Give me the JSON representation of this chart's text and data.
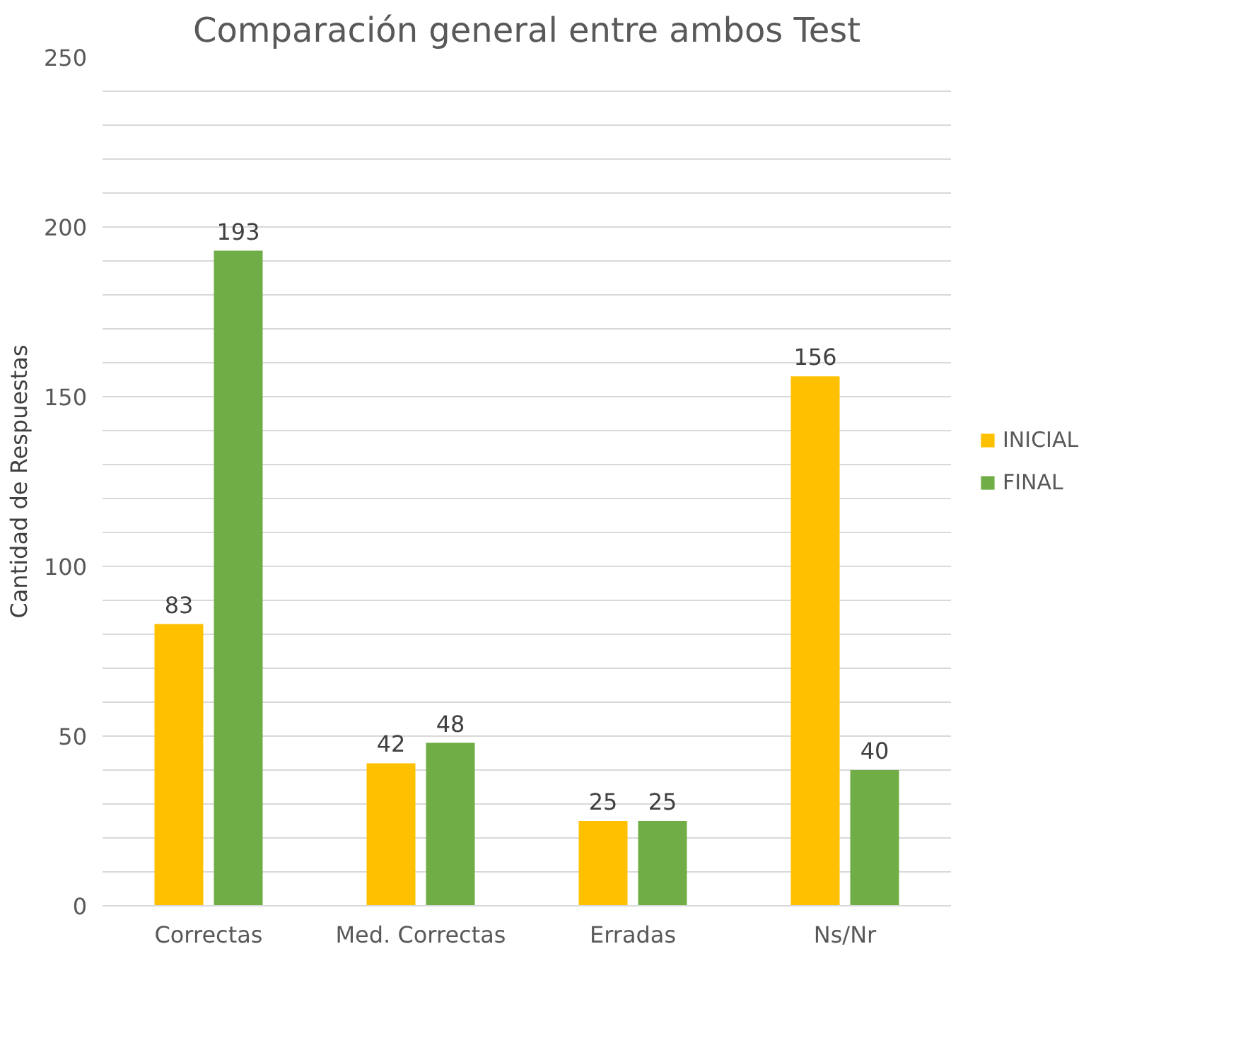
{
  "chart_data": {
    "type": "bar",
    "title": "Comparación general entre ambos Test",
    "ylabel": "Cantidad de Respuestas",
    "categories": [
      "Correctas",
      "Med. Correctas",
      "Erradas",
      "Ns/Nr"
    ],
    "series": [
      {
        "name": "INICIAL",
        "color": "#ffc000",
        "values": [
          83,
          42,
          25,
          156
        ]
      },
      {
        "name": "FINAL",
        "color": "#70ad47",
        "values": [
          193,
          48,
          25,
          40
        ]
      }
    ],
    "ylim": [
      0,
      250
    ],
    "yticks": [
      0,
      {
        "value": 10,
        "label": null
      },
      {
        "value": 20,
        "label": null
      },
      {
        "value": 30,
        "label": null
      },
      {
        "value": 40,
        "label": null
      },
      50,
      {
        "value": 60,
        "label": null
      },
      {
        "value": 70,
        "label": null
      },
      {
        "value": 80,
        "label": null
      },
      {
        "value": 90,
        "label": null
      },
      100,
      {
        "value": 110,
        "label": null
      },
      {
        "value": 120,
        "label": null
      },
      {
        "value": 130,
        "label": null
      },
      {
        "value": 140,
        "label": null
      },
      150,
      {
        "value": 160,
        "label": null
      },
      {
        "value": 170,
        "label": null
      },
      {
        "value": 180,
        "label": null
      },
      {
        "value": 190,
        "label": null
      },
      200,
      {
        "value": 210,
        "label": null
      },
      {
        "value": 220,
        "label": null
      },
      {
        "value": 230,
        "label": null
      },
      {
        "value": 240,
        "label": null
      },
      250
    ],
    "grid": "y",
    "legend": "right",
    "data_labels": true
  }
}
